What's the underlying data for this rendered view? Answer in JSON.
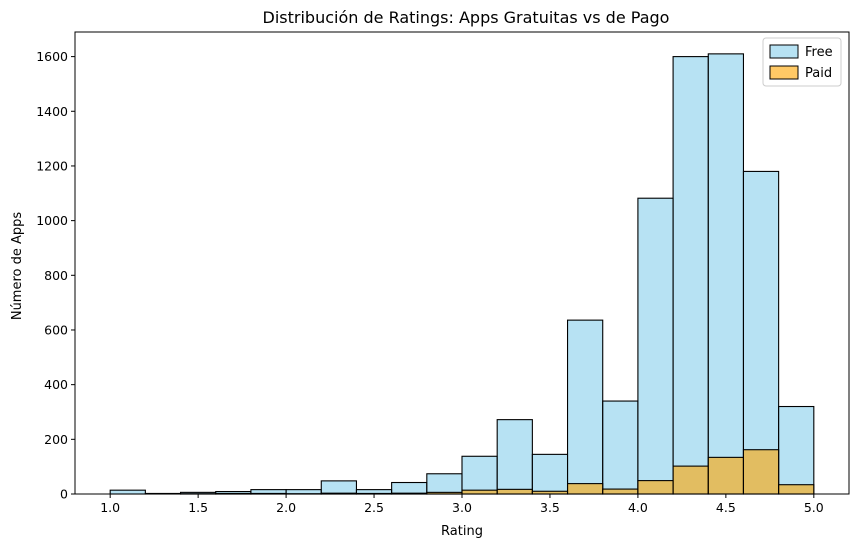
{
  "chart_data": {
    "type": "bar",
    "title": "Distribución de Ratings: Apps Gratuitas vs de Pago",
    "xlabel": "Rating",
    "ylabel": "Número de Apps",
    "xlim": [
      0.8,
      5.2
    ],
    "ylim": [
      0,
      1690
    ],
    "xticks": [
      1.0,
      1.5,
      2.0,
      2.5,
      3.0,
      3.5,
      4.0,
      4.5,
      5.0
    ],
    "yticks": [
      0,
      200,
      400,
      600,
      800,
      1000,
      1200,
      1400,
      1600
    ],
    "bin_edges": [
      1.0,
      1.2,
      1.4,
      1.6,
      1.8,
      2.0,
      2.2,
      2.4,
      2.6,
      2.8,
      3.0,
      3.2,
      3.4,
      3.6,
      3.8,
      4.0,
      4.2,
      4.4,
      4.6,
      4.8,
      5.0
    ],
    "series": [
      {
        "name": "Free",
        "color": "#87ceeb",
        "values": [
          14,
          2,
          6,
          9,
          16,
          16,
          48,
          16,
          42,
          74,
          138,
          272,
          145,
          636,
          340,
          1082,
          1600,
          1610,
          1180,
          320
        ]
      },
      {
        "name": "Paid",
        "color": "#ffa500",
        "values": [
          0,
          0,
          1,
          2,
          2,
          1,
          3,
          2,
          3,
          6,
          14,
          17,
          10,
          38,
          18,
          49,
          102,
          134,
          162,
          34
        ]
      }
    ],
    "legend": "top-right",
    "grid": false
  }
}
